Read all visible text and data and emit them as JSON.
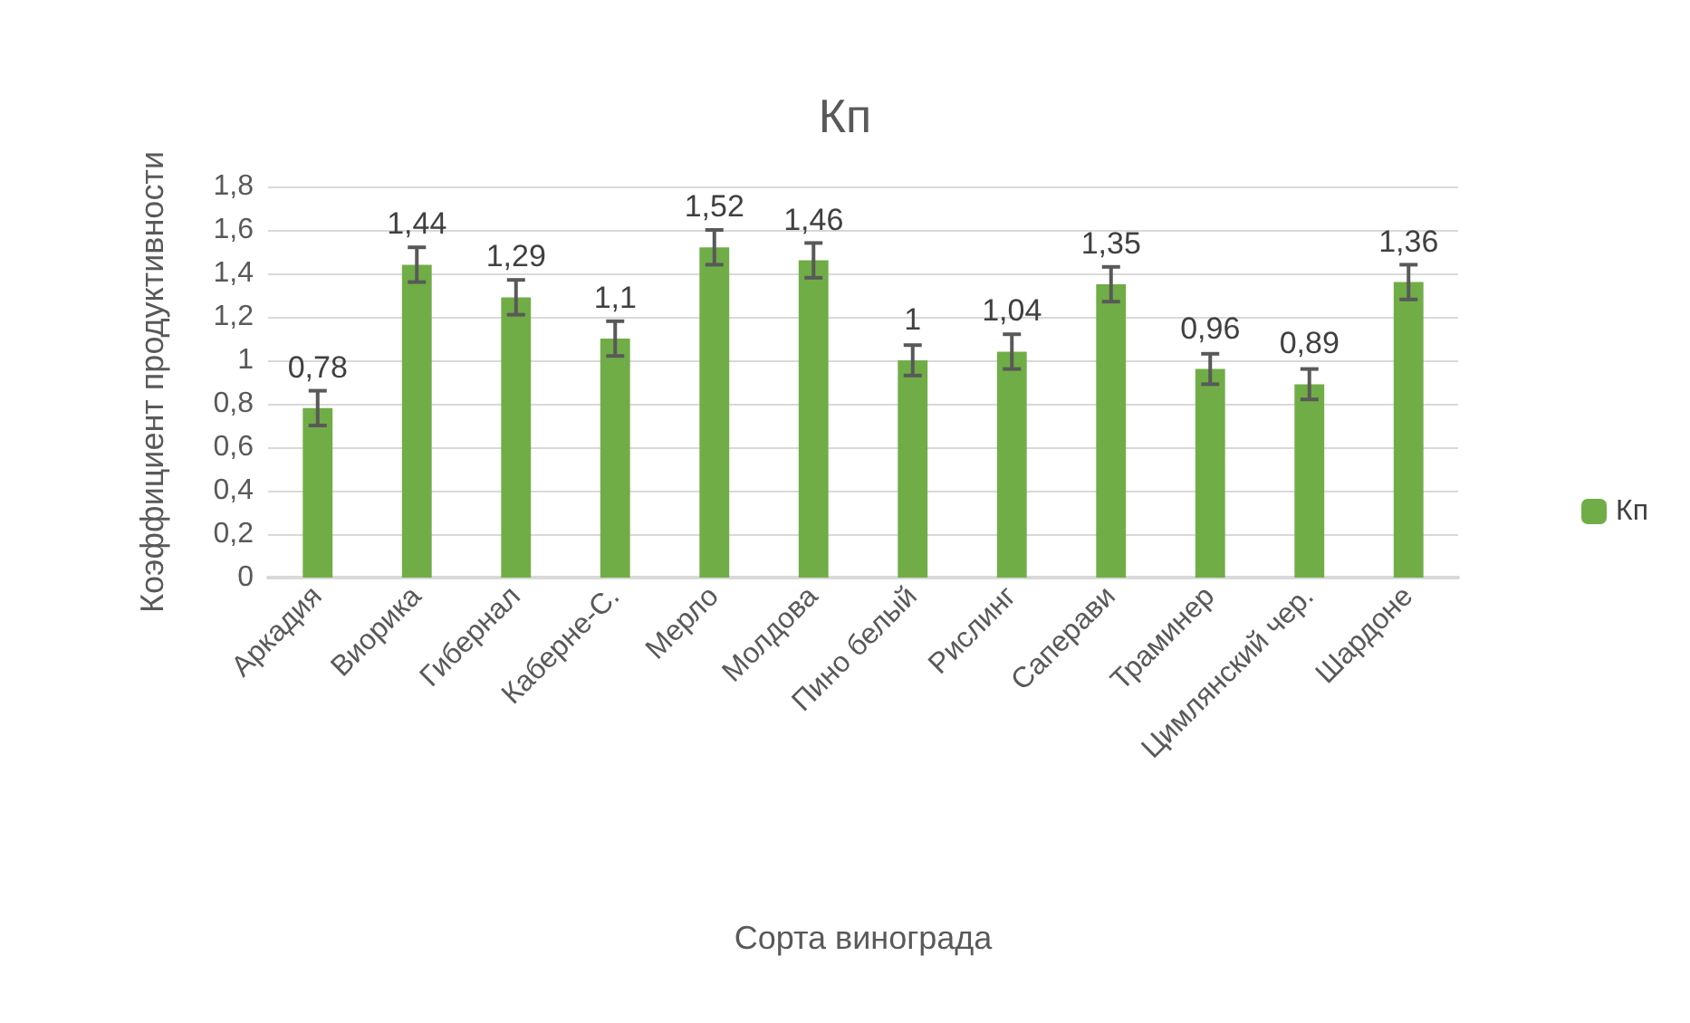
{
  "chart_data": {
    "type": "bar",
    "title": "Кп",
    "xlabel": "Сорта винограда",
    "ylabel": "Коэффициент продуктивности",
    "categories": [
      "Аркадия",
      "Виорика",
      "Гибернал",
      "Каберне-С.",
      "Мерло",
      "Молдова",
      "Пино белый",
      "Рислинг",
      "Саперави",
      "Траминер",
      "Цимлянский чер.",
      "Шардоне"
    ],
    "series": [
      {
        "name": "Кп",
        "color": "#70ad47",
        "values": [
          0.78,
          1.44,
          1.29,
          1.1,
          1.52,
          1.46,
          1,
          1.04,
          1.35,
          0.96,
          0.89,
          1.36
        ],
        "errors": [
          0.08,
          0.08,
          0.08,
          0.08,
          0.08,
          0.08,
          0.07,
          0.08,
          0.08,
          0.07,
          0.07,
          0.08
        ],
        "value_labels": [
          "0,78",
          "1,44",
          "1,29",
          "1,1",
          "1,52",
          "1,46",
          "1",
          "1,04",
          "1,35",
          "0,96",
          "0,89",
          "1,36"
        ]
      }
    ],
    "ylim": [
      0,
      1.8
    ],
    "yticks": [
      0,
      {
        "value": 0.2,
        "label": "0,2"
      },
      {
        "value": 0.4,
        "label": "0,4"
      },
      {
        "value": 0.6,
        "label": "0,6"
      },
      {
        "value": 0.8,
        "label": "0,8"
      },
      1,
      {
        "value": 1.2,
        "label": "1,2"
      },
      {
        "value": 1.4,
        "label": "1,4"
      },
      {
        "value": 1.6,
        "label": "1,6"
      },
      {
        "value": 1.8,
        "label": "1,8"
      }
    ],
    "grid": "y",
    "legend": "right"
  }
}
